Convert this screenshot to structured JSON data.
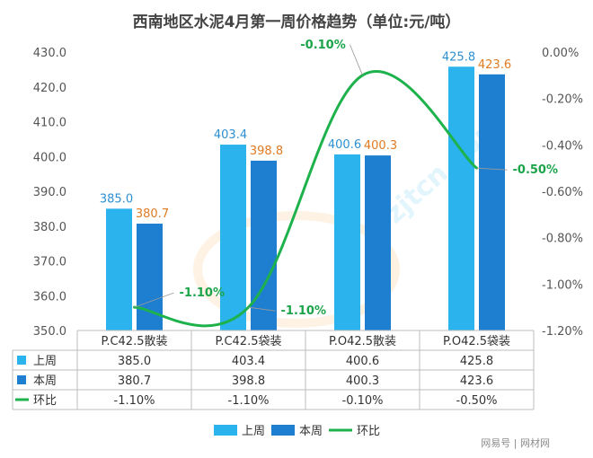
{
  "chart_data": {
    "type": "bar",
    "title": "西南地区水泥4月第一周价格趋势（单位:元/吨）",
    "categories": [
      "P.C42.5散装",
      "P.C42.5袋装",
      "P.O42.5散装",
      "P.O42.5袋装"
    ],
    "series": [
      {
        "name": "上周",
        "type": "bar",
        "axis": "left",
        "color": "#2AB3EC",
        "values": [
          385.0,
          403.4,
          400.6,
          425.8
        ],
        "labels": [
          "385.0",
          "403.4",
          "400.6",
          "425.8"
        ]
      },
      {
        "name": "本周",
        "type": "bar",
        "axis": "left",
        "color": "#1E7FD1",
        "values": [
          380.7,
          398.8,
          400.3,
          423.6
        ],
        "labels": [
          "380.7",
          "398.8",
          "400.3",
          "423.6"
        ]
      },
      {
        "name": "环比",
        "type": "line",
        "axis": "right",
        "color": "#1DB24B",
        "values": [
          -1.1,
          -1.1,
          -0.1,
          -0.5
        ],
        "labels": [
          "-1.10%",
          "-1.10%",
          "-0.10%",
          "-0.50%"
        ]
      }
    ],
    "y_left": {
      "min": 350,
      "max": 430,
      "step": 10,
      "tick_labels": [
        "430.0",
        "420.0",
        "410.0",
        "400.0",
        "390.0",
        "380.0",
        "370.0",
        "360.0",
        "350.0"
      ]
    },
    "y_right": {
      "min": -1.2,
      "max": 0,
      "step": 0.2,
      "tick_labels": [
        "0.00%",
        "-0.20%",
        "-0.40%",
        "-0.60%",
        "-0.80%",
        "-1.00%",
        "-1.20%"
      ]
    },
    "grid": false,
    "legend": "bottom",
    "data_table": {
      "rows": [
        {
          "name": "上周",
          "cells": [
            "385.0",
            "403.4",
            "400.6",
            "425.8"
          ]
        },
        {
          "name": "本周",
          "cells": [
            "380.7",
            "398.8",
            "400.3",
            "423.6"
          ]
        },
        {
          "name": "环比",
          "cells": [
            "-1.10%",
            "-1.10%",
            "-0.10%",
            "-0.50%"
          ]
        }
      ]
    }
  },
  "watermark": {
    "text": "zjtcn.com"
  },
  "footer": {
    "left": "网易号",
    "right": "网材网"
  }
}
